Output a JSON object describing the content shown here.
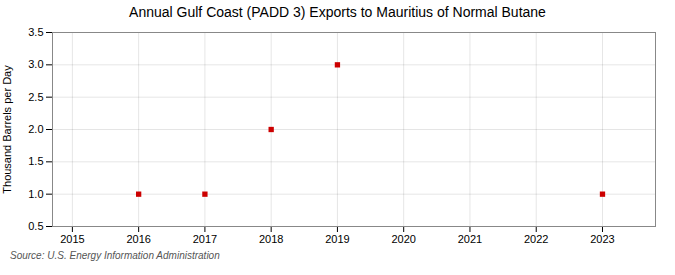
{
  "chart_data": {
    "type": "scatter",
    "title": "Annual Gulf Coast (PADD 3) Exports to Mauritius of Normal Butane",
    "ylabel": "Thousand Barrels per Day",
    "source": "Source: U.S. Energy Information Administration",
    "x": [
      2016,
      2017,
      2018,
      2019,
      2023
    ],
    "values": [
      1.0,
      1.0,
      2.0,
      3.0,
      1.0
    ],
    "color": "#CC0000",
    "marker": "square",
    "xlim": [
      2014.7,
      2023.8
    ],
    "ylim": [
      0.5,
      3.5
    ],
    "xticks": [
      2015,
      2016,
      2017,
      2018,
      2019,
      2020,
      2021,
      2022,
      2023
    ],
    "yticks": [
      0.5,
      {
        "value": 1.0,
        "label": "1.0"
      },
      1.5,
      {
        "value": 2.0,
        "label": "2.0"
      },
      2.5,
      {
        "value": 3.0,
        "label": "3.0"
      },
      3.5
    ],
    "grid": true
  }
}
